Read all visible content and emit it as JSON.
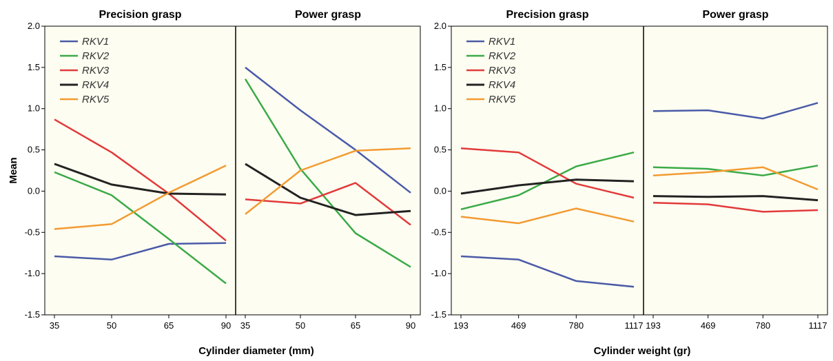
{
  "colors": {
    "RKV1": "#4a5aa8",
    "RKV2": "#3aaa47",
    "RKV3": "#e23a3a",
    "RKV4": "#222222",
    "RKV5": "#f39a30",
    "plot_background": "#fdfdf1"
  },
  "chart_data": [
    {
      "type": "line",
      "panels": [
        {
          "title": "Precision grasp",
          "categories": [
            "35",
            "50",
            "65",
            "90"
          ],
          "series": [
            {
              "name": "RKV1",
              "values": [
                -0.79,
                -0.83,
                -0.64,
                -0.63
              ]
            },
            {
              "name": "RKV2",
              "values": [
                0.23,
                -0.05,
                -0.58,
                -1.12
              ]
            },
            {
              "name": "RKV3",
              "values": [
                0.87,
                0.47,
                -0.03,
                -0.6
              ]
            },
            {
              "name": "RKV4",
              "values": [
                0.33,
                0.08,
                -0.03,
                -0.04
              ]
            },
            {
              "name": "RKV5",
              "values": [
                -0.46,
                -0.4,
                -0.02,
                0.31
              ]
            }
          ]
        },
        {
          "title": "Power grasp",
          "categories": [
            "35",
            "50",
            "65",
            "90"
          ],
          "series": [
            {
              "name": "RKV1",
              "values": [
                1.5,
                0.98,
                0.5,
                -0.02
              ]
            },
            {
              "name": "RKV2",
              "values": [
                1.36,
                0.27,
                -0.51,
                -0.92
              ]
            },
            {
              "name": "RKV3",
              "values": [
                -0.1,
                -0.15,
                0.1,
                -0.41
              ]
            },
            {
              "name": "RKV4",
              "values": [
                0.33,
                -0.08,
                -0.29,
                -0.24
              ]
            },
            {
              "name": "RKV5",
              "values": [
                -0.28,
                0.25,
                0.49,
                0.52
              ]
            }
          ]
        }
      ],
      "xlabel": "Cylinder diameter (mm)",
      "ylabel": "Mean",
      "ylim": [
        -1.5,
        2.0
      ],
      "yticks": [
        "2.0",
        "1.5",
        "1.0",
        "0.5",
        "0.0",
        "-0.5",
        "-1.0",
        "-1.5"
      ],
      "legend": [
        "RKV1",
        "RKV2",
        "RKV3",
        "RKV4",
        "RKV5"
      ],
      "legend_position": "top-left",
      "grid": false
    },
    {
      "type": "line",
      "panels": [
        {
          "title": "Precision grasp",
          "categories": [
            "193",
            "469",
            "780",
            "1117"
          ],
          "series": [
            {
              "name": "RKV1",
              "values": [
                -0.79,
                -0.83,
                -1.09,
                -1.16
              ]
            },
            {
              "name": "RKV2",
              "values": [
                -0.22,
                -0.05,
                0.3,
                0.47
              ]
            },
            {
              "name": "RKV3",
              "values": [
                0.52,
                0.47,
                0.09,
                -0.08
              ]
            },
            {
              "name": "RKV4",
              "values": [
                -0.03,
                0.07,
                0.14,
                0.12
              ]
            },
            {
              "name": "RKV5",
              "values": [
                -0.31,
                -0.39,
                -0.21,
                -0.37
              ]
            }
          ]
        },
        {
          "title": "Power grasp",
          "categories": [
            "193",
            "469",
            "780",
            "1117"
          ],
          "series": [
            {
              "name": "RKV1",
              "values": [
                0.97,
                0.98,
                0.88,
                1.07
              ]
            },
            {
              "name": "RKV2",
              "values": [
                0.29,
                0.27,
                0.19,
                0.31
              ]
            },
            {
              "name": "RKV3",
              "values": [
                -0.14,
                -0.16,
                -0.25,
                -0.23
              ]
            },
            {
              "name": "RKV4",
              "values": [
                -0.06,
                -0.07,
                -0.06,
                -0.11
              ]
            },
            {
              "name": "RKV5",
              "values": [
                0.19,
                0.23,
                0.29,
                0.02
              ]
            }
          ]
        }
      ],
      "xlabel": "Cylinder weight (gr)",
      "ylabel": "",
      "ylim": [
        -1.5,
        2.0
      ],
      "yticks": [
        "2.0",
        "1.5",
        "1.0",
        "0.5",
        "0.0",
        "-0.5",
        "-1.0",
        "-1.5"
      ],
      "legend": [
        "RKV1",
        "RKV2",
        "RKV3",
        "RKV4",
        "RKV5"
      ],
      "legend_position": "top-left",
      "grid": false
    }
  ]
}
